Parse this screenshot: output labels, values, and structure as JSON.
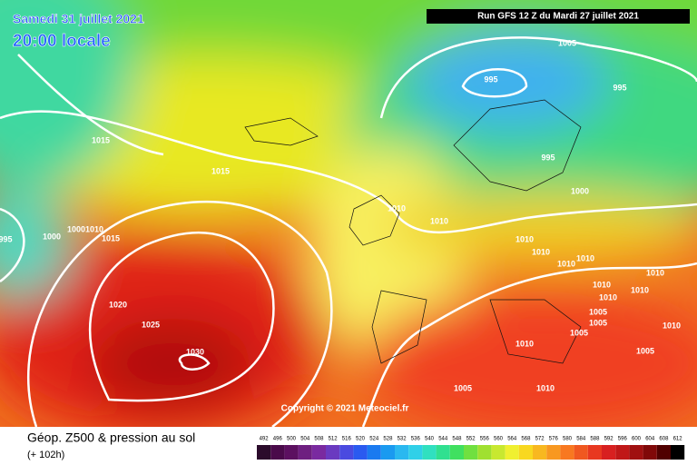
{
  "header": {
    "date": "Samedi 31 juillet 2021",
    "time": "20:00 locale",
    "run": "Run GFS 12 Z du Mardi 27 juillet 2021"
  },
  "isobar_labels": [
    "1005",
    "995",
    "995",
    "1015",
    "1015",
    "995",
    "1000",
    "1010",
    "1010",
    "995",
    "1000",
    "1000",
    "1010",
    "1015",
    "1010",
    "1010",
    "1010",
    "1010",
    "1010",
    "1010",
    "1010",
    "1010",
    "1005",
    "1005",
    "1010",
    "1005",
    "1020",
    "1025",
    "1030",
    "1010",
    "1005",
    "1005",
    "1010"
  ],
  "copyright": "Copyright © 2021 Meteociel.fr",
  "footer": {
    "title": "Géop. Z500 & pression au sol",
    "lead": "(+ 102h)"
  },
  "scale": {
    "labels": [
      "492",
      "496",
      "500",
      "504",
      "508",
      "512",
      "516",
      "520",
      "524",
      "528",
      "532",
      "536",
      "540",
      "544",
      "548",
      "552",
      "556",
      "560",
      "564",
      "568",
      "572",
      "576",
      "580",
      "584",
      "588",
      "592",
      "596",
      "600",
      "604",
      "608",
      "612"
    ]
  }
}
